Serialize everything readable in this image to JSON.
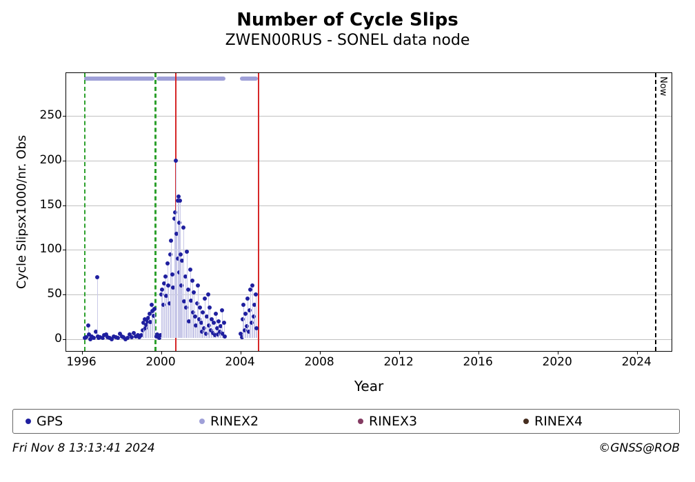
{
  "chart": {
    "type": "scatter",
    "title": "Number of Cycle Slips",
    "subtitle": "ZWEN00RUS - SONEL data node",
    "xlabel": "Year",
    "ylabel": "Cycle Slipsx1000/nr. Obs",
    "title_fontsize": 26,
    "subtitle_fontsize": 22,
    "axis_label_fontsize": 20,
    "tick_fontsize": 17,
    "background_color": "#ffffff",
    "grid_color": "#c0c0c0",
    "border_color": "#000000",
    "xlim": [
      1995.2,
      2025.8
    ],
    "ylim": [
      -15,
      298
    ],
    "xticks": [
      1996,
      2000,
      2004,
      2008,
      2012,
      2016,
      2020,
      2024
    ],
    "yticks": [
      0,
      50,
      100,
      150,
      200,
      250
    ],
    "series_gps": {
      "label": "GPS",
      "color": "#1f1f9f",
      "marker_size": 6,
      "points": [
        [
          1996.15,
          1
        ],
        [
          1996.2,
          2
        ],
        [
          1996.3,
          15
        ],
        [
          1996.35,
          5
        ],
        [
          1996.4,
          0
        ],
        [
          1996.5,
          3
        ],
        [
          1996.6,
          1
        ],
        [
          1996.7,
          8
        ],
        [
          1996.75,
          69
        ],
        [
          1996.8,
          3
        ],
        [
          1996.85,
          1
        ],
        [
          1996.9,
          2
        ],
        [
          1997.05,
          1
        ],
        [
          1997.1,
          4
        ],
        [
          1997.2,
          5
        ],
        [
          1997.3,
          2
        ],
        [
          1997.4,
          1
        ],
        [
          1997.5,
          0
        ],
        [
          1997.6,
          3
        ],
        [
          1997.7,
          2
        ],
        [
          1997.8,
          1
        ],
        [
          1997.9,
          6
        ],
        [
          1998.0,
          3
        ],
        [
          1998.1,
          2
        ],
        [
          1998.2,
          0
        ],
        [
          1998.3,
          1
        ],
        [
          1998.4,
          5
        ],
        [
          1998.5,
          2
        ],
        [
          1998.6,
          7
        ],
        [
          1998.7,
          3
        ],
        [
          1998.8,
          4
        ],
        [
          1998.9,
          2
        ],
        [
          1999.0,
          4
        ],
        [
          1999.05,
          10
        ],
        [
          1999.1,
          18
        ],
        [
          1999.15,
          22
        ],
        [
          1999.2,
          12
        ],
        [
          1999.25,
          16
        ],
        [
          1999.3,
          20
        ],
        [
          1999.35,
          24
        ],
        [
          1999.4,
          28
        ],
        [
          1999.45,
          19
        ],
        [
          1999.5,
          38
        ],
        [
          1999.55,
          31
        ],
        [
          1999.6,
          26
        ],
        [
          1999.65,
          34
        ],
        [
          1999.75,
          3
        ],
        [
          1999.8,
          5
        ],
        [
          1999.85,
          2
        ],
        [
          1999.9,
          1
        ],
        [
          1999.95,
          4
        ],
        [
          2000.0,
          50
        ],
        [
          2000.05,
          55
        ],
        [
          2000.1,
          38
        ],
        [
          2000.15,
          62
        ],
        [
          2000.2,
          70
        ],
        [
          2000.25,
          48
        ],
        [
          2000.3,
          85
        ],
        [
          2000.35,
          60
        ],
        [
          2000.4,
          40
        ],
        [
          2000.45,
          95
        ],
        [
          2000.5,
          110
        ],
        [
          2000.55,
          72
        ],
        [
          2000.6,
          58
        ],
        [
          2000.65,
          135
        ],
        [
          2000.7,
          142
        ],
        [
          2000.74,
          200
        ],
        [
          2000.78,
          118
        ],
        [
          2000.82,
          155
        ],
        [
          2000.85,
          90
        ],
        [
          2000.88,
          160
        ],
        [
          2000.9,
          75
        ],
        [
          2000.92,
          130
        ],
        [
          2000.95,
          155
        ],
        [
          2000.98,
          95
        ],
        [
          2001.0,
          60
        ],
        [
          2001.05,
          88
        ],
        [
          2001.1,
          125
        ],
        [
          2001.15,
          42
        ],
        [
          2001.2,
          70
        ],
        [
          2001.25,
          35
        ],
        [
          2001.3,
          98
        ],
        [
          2001.35,
          55
        ],
        [
          2001.4,
          20
        ],
        [
          2001.45,
          78
        ],
        [
          2001.5,
          43
        ],
        [
          2001.55,
          65
        ],
        [
          2001.6,
          30
        ],
        [
          2001.65,
          52
        ],
        [
          2001.7,
          25
        ],
        [
          2001.75,
          15
        ],
        [
          2001.8,
          40
        ],
        [
          2001.85,
          60
        ],
        [
          2001.9,
          22
        ],
        [
          2001.95,
          35
        ],
        [
          2002.0,
          18
        ],
        [
          2002.05,
          8
        ],
        [
          2002.1,
          30
        ],
        [
          2002.15,
          12
        ],
        [
          2002.2,
          45
        ],
        [
          2002.25,
          6
        ],
        [
          2002.3,
          25
        ],
        [
          2002.35,
          50
        ],
        [
          2002.4,
          15
        ],
        [
          2002.45,
          35
        ],
        [
          2002.5,
          10
        ],
        [
          2002.55,
          22
        ],
        [
          2002.6,
          7
        ],
        [
          2002.65,
          18
        ],
        [
          2002.7,
          4
        ],
        [
          2002.75,
          28
        ],
        [
          2002.8,
          12
        ],
        [
          2002.85,
          5
        ],
        [
          2002.9,
          20
        ],
        [
          2002.95,
          8
        ],
        [
          2003.0,
          14
        ],
        [
          2003.05,
          32
        ],
        [
          2003.1,
          6
        ],
        [
          2003.15,
          18
        ],
        [
          2003.2,
          3
        ],
        [
          2004.0,
          6
        ],
        [
          2004.05,
          2
        ],
        [
          2004.1,
          22
        ],
        [
          2004.15,
          38
        ],
        [
          2004.2,
          10
        ],
        [
          2004.25,
          28
        ],
        [
          2004.3,
          14
        ],
        [
          2004.35,
          45
        ],
        [
          2004.4,
          8
        ],
        [
          2004.45,
          32
        ],
        [
          2004.5,
          55
        ],
        [
          2004.55,
          18
        ],
        [
          2004.6,
          60
        ],
        [
          2004.65,
          25
        ],
        [
          2004.7,
          38
        ],
        [
          2004.75,
          50
        ],
        [
          2004.8,
          12
        ]
      ]
    },
    "rinex2_band": {
      "color": "#9fa0d8",
      "segments": [
        [
          1996.1,
          1999.65
        ],
        [
          1999.75,
          2003.25
        ],
        [
          2003.95,
          2004.85
        ]
      ]
    },
    "vlines": {
      "green_dashed": [
        1996.1,
        1999.65,
        1999.7,
        2000.7
      ],
      "red_solid": [
        2000.7,
        2004.85
      ],
      "black_dashed_now": 2024.9
    },
    "now_label": "Now",
    "legend": {
      "items": [
        {
          "label": "GPS",
          "color": "#1f1f9f"
        },
        {
          "label": "RINEX2",
          "color": "#9fa0d8"
        },
        {
          "label": "RINEX3",
          "color": "#843b62"
        },
        {
          "label": "RINEX4",
          "color": "#452d1f"
        }
      ]
    },
    "footer_left": "Fri Nov  8 13:13:41 2024",
    "footer_right": "©GNSS@ROB"
  }
}
